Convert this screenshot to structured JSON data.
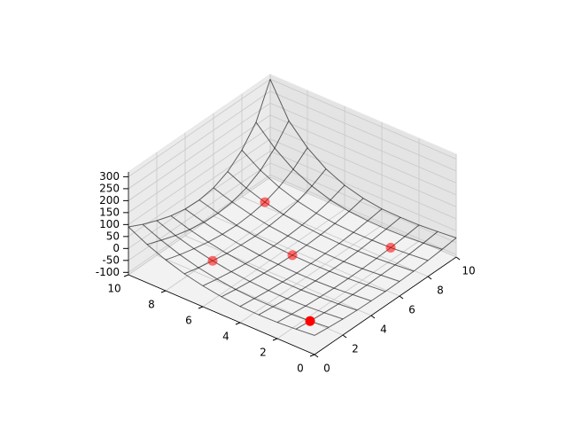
{
  "chart_data": {
    "type": "wireframe3d",
    "x": [
      0,
      1,
      2,
      3,
      4,
      5,
      6,
      7,
      8,
      9,
      10
    ],
    "y": [
      0,
      1,
      2,
      3,
      4,
      5,
      6,
      7,
      8,
      9,
      10
    ],
    "z": [
      [
        -30,
        -37,
        -43,
        -47,
        -49,
        -50,
        -49,
        -47,
        -43,
        -37,
        -30
      ],
      [
        -37,
        -44,
        -50,
        -54,
        -56,
        -57,
        -56,
        -54,
        -50,
        -44,
        -37
      ],
      [
        -42,
        -49,
        -55,
        -59,
        -62,
        -63,
        -62,
        -60,
        -56,
        -50,
        -43
      ],
      [
        -44,
        -51,
        -58,
        -62,
        -65,
        -66,
        -66,
        -63,
        -58,
        -52,
        -44
      ],
      [
        -42,
        -50,
        -57,
        -62,
        -66,
        -67,
        -66,
        -64,
        -59,
        -51,
        -42
      ],
      [
        -35,
        -45,
        -53,
        -59,
        -63,
        -65,
        -64,
        -61,
        -55,
        -45,
        -31
      ],
      [
        -23,
        -35,
        -45,
        -53,
        -58,
        -60,
        -59,
        -54,
        -45,
        -31,
        -10
      ],
      [
        -6,
        -21,
        -33,
        -43,
        -49,
        -52,
        -50,
        -43,
        -29,
        -6,
        25
      ],
      [
        19,
        0,
        -16,
        -29,
        -37,
        -40,
        -36,
        -25,
        -3,
        31,
        80
      ],
      [
        50,
        27,
        6,
        -10,
        -20,
        -23,
        -17,
        1,
        34,
        86,
        160
      ],
      [
        90,
        60,
        35,
        14,
        2,
        -1,
        9,
        36,
        85,
        161,
        300
      ]
    ],
    "color": "#000000",
    "points": {
      "color": "#ff0000",
      "x": [
        1,
        2,
        5,
        8,
        7
      ],
      "y": [
        1,
        7,
        5,
        2,
        8
      ],
      "z": [
        -44,
        -33,
        -65,
        -56,
        -25
      ]
    },
    "xlim": [
      0,
      10
    ],
    "ylim": [
      0,
      10
    ],
    "zlim": [
      -110,
      320
    ],
    "xticks": [
      0,
      2,
      4,
      6,
      8,
      10
    ],
    "yticks": [
      0,
      2,
      4,
      6,
      8,
      10
    ],
    "zticks": [
      -100,
      -50,
      0,
      50,
      100,
      150,
      200,
      250,
      300
    ],
    "grid": true
  }
}
